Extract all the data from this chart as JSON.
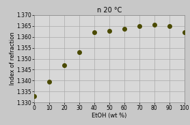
{
  "title": "n 20 °C",
  "xlabel": "EtOH (wt %)",
  "ylabel": "Index of refraction",
  "x": [
    0,
    10,
    20,
    30,
    40,
    50,
    60,
    70,
    80,
    90,
    100
  ],
  "y": [
    1.333,
    1.3395,
    1.3469,
    1.353,
    1.362,
    1.3626,
    1.3638,
    1.365,
    1.3655,
    1.365,
    1.3622
  ],
  "xlim": [
    0,
    100
  ],
  "ylim": [
    1.33,
    1.37
  ],
  "yticks": [
    1.33,
    1.335,
    1.34,
    1.345,
    1.35,
    1.355,
    1.36,
    1.365,
    1.37
  ],
  "xticks": [
    0,
    10,
    20,
    30,
    40,
    50,
    60,
    70,
    80,
    90,
    100
  ],
  "marker_color": "#4a4a00",
  "marker_size": 4,
  "bg_color": "#c8c8c8",
  "plot_bg_color": "#d8d8d8",
  "grid_color": "#b0b0b0",
  "title_fontsize": 7,
  "label_fontsize": 6,
  "tick_fontsize": 5.5
}
